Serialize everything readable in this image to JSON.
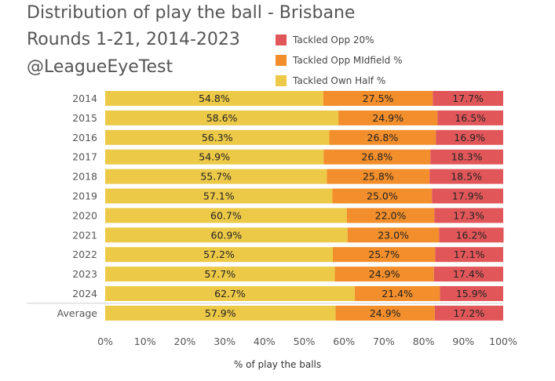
{
  "chart_data": {
    "type": "bar",
    "orientation": "horizontal",
    "stacked": true,
    "title_lines": [
      "Distribution of play the ball - Brisbane",
      "Rounds 1-21, 2014-2023",
      "@LeagueEyeTest"
    ],
    "xlabel": "% of play the balls",
    "ylabel": "",
    "xlim": [
      0,
      100
    ],
    "xticks": [
      "0%",
      "10%",
      "20%",
      "30%",
      "40%",
      "50%",
      "60%",
      "70%",
      "80%",
      "90%",
      "100%"
    ],
    "categories": [
      "2014",
      "2015",
      "2016",
      "2017",
      "2018",
      "2019",
      "2020",
      "2021",
      "2022",
      "2023",
      "2024",
      "Average"
    ],
    "series": [
      {
        "name": "Tackled Own Half %",
        "color": "#EDC948",
        "values": [
          54.8,
          58.6,
          56.3,
          54.9,
          55.7,
          57.1,
          60.7,
          60.9,
          57.2,
          57.7,
          62.7,
          57.9
        ],
        "labels": [
          "54.8%",
          "58.6%",
          "56.3%",
          "54.9%",
          "55.7%",
          "57.1%",
          "60.7%",
          "60.9%",
          "57.2%",
          "57.7%",
          "62.7%",
          "57.9%"
        ]
      },
      {
        "name": "Tackled Opp MIdfield %",
        "color": "#F28E2B",
        "values": [
          27.5,
          24.9,
          26.8,
          26.8,
          25.8,
          25.0,
          22.0,
          23.0,
          25.7,
          24.9,
          21.4,
          24.9
        ],
        "labels": [
          "27.5%",
          "24.9%",
          "26.8%",
          "26.8%",
          "25.8%",
          "25.0%",
          "22.0%",
          "23.0%",
          "25.7%",
          "24.9%",
          "21.4%",
          "24.9%"
        ]
      },
      {
        "name": "Tackled Opp 20%",
        "color": "#E15759",
        "values": [
          17.7,
          16.5,
          16.9,
          18.3,
          18.5,
          17.9,
          17.3,
          16.2,
          17.1,
          17.4,
          15.9,
          17.2
        ],
        "labels": [
          "17.7%",
          "16.5%",
          "16.9%",
          "18.3%",
          "18.5%",
          "17.9%",
          "17.3%",
          "16.2%",
          "17.1%",
          "17.4%",
          "15.9%",
          "17.2%"
        ]
      }
    ],
    "legend_order": [
      2,
      1,
      0
    ],
    "legend_position": "top-right",
    "grid": false
  }
}
